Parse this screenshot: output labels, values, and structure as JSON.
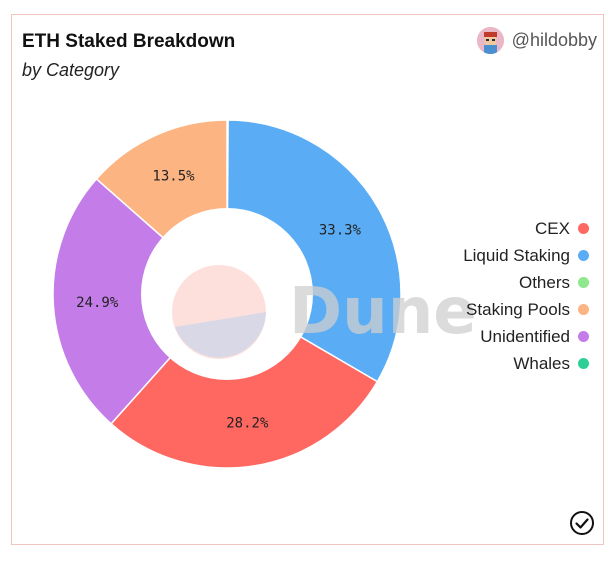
{
  "header": {
    "title": "ETH Staked Breakdown",
    "subtitle": "by Category",
    "author": "@hildobby"
  },
  "chart_data": {
    "type": "pie",
    "title": "ETH Staked Breakdown",
    "subtitle": "by Category",
    "categories": [
      "CEX",
      "Liquid Staking",
      "Others",
      "Staking Pools",
      "Unidentified",
      "Whales"
    ],
    "values": [
      28.2,
      33.3,
      0.1,
      13.5,
      24.9,
      0.0
    ],
    "colors": [
      "#ff6761",
      "#5aadf5",
      "#8de88e",
      "#fdb483",
      "#c47de8",
      "#2ecf96"
    ],
    "slice_order": [
      "Others",
      "Liquid Staking",
      "CEX",
      "Unidentified",
      "Staking Pools"
    ],
    "labels": {
      "Liquid Staking": "33.3%",
      "CEX": "28.2%",
      "Unidentified": "24.9%",
      "Staking Pools": "13.5%"
    },
    "legend_position": "right",
    "watermark": "Dune"
  }
}
